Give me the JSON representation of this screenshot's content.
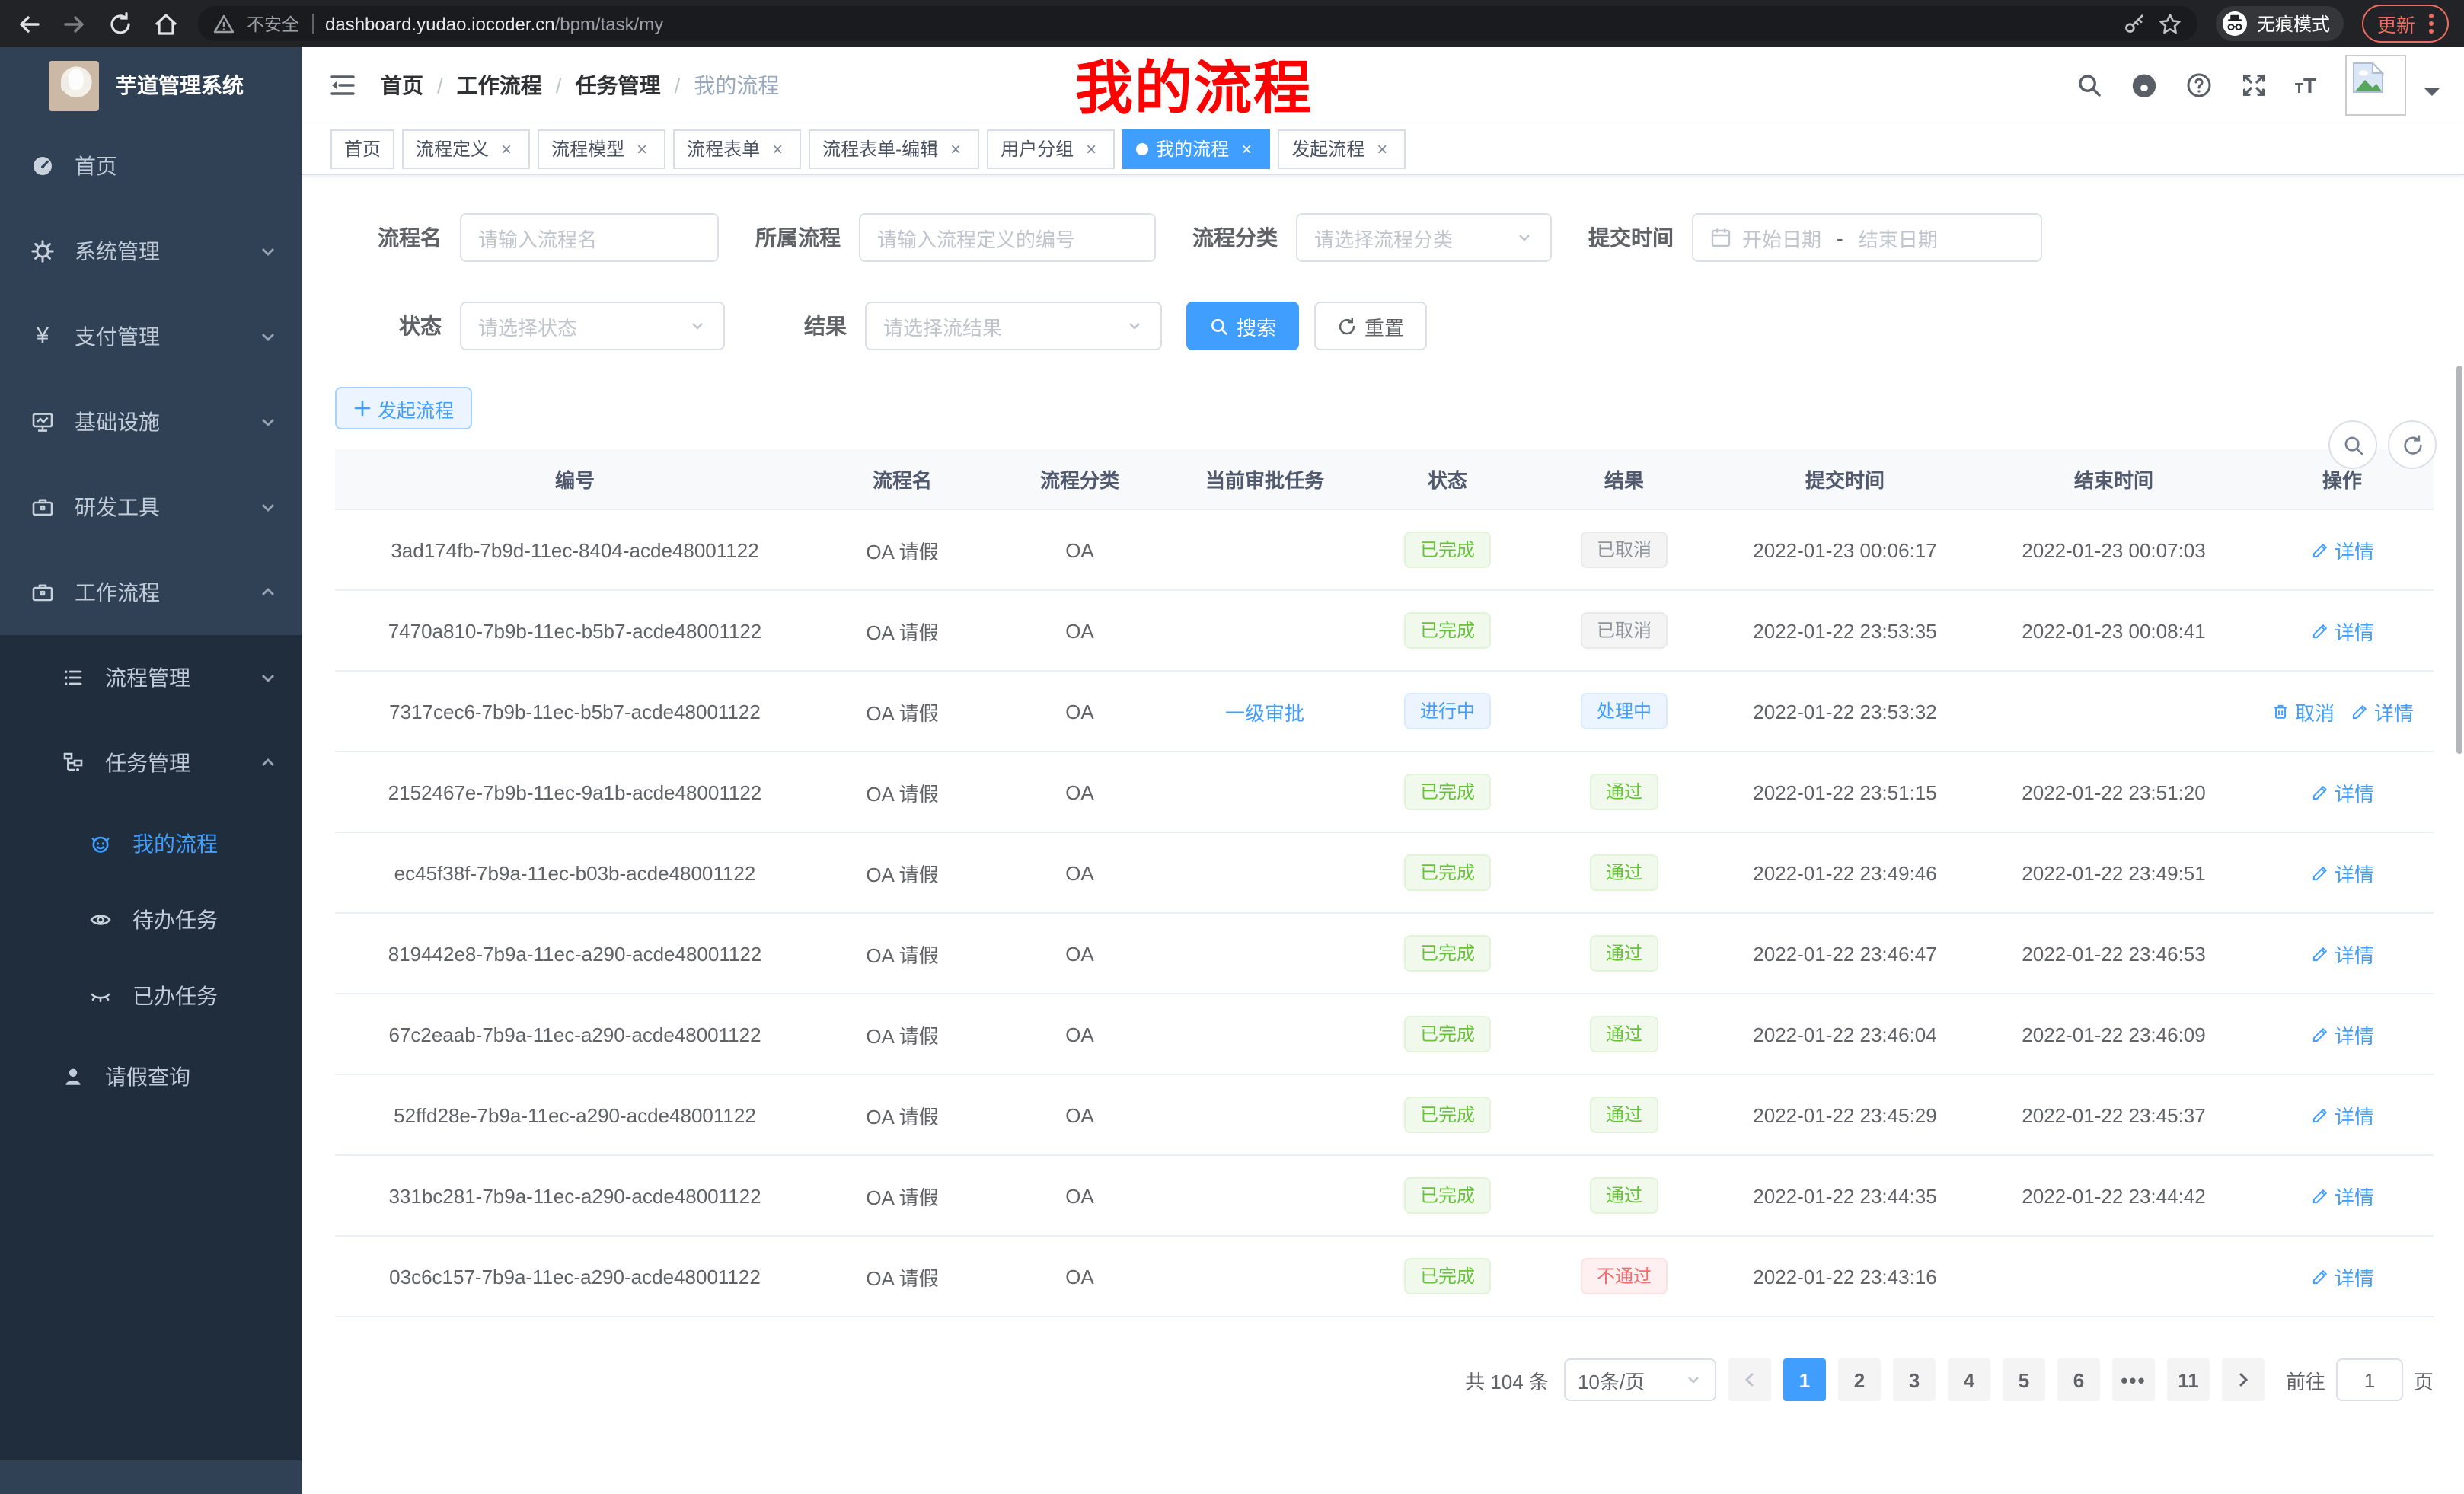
{
  "browser": {
    "security_label": "不安全",
    "url_host": "dashboard.yudao.iocoder.cn",
    "url_path": "/bpm/task/my",
    "incognito_label": "无痕模式",
    "update_label": "更新"
  },
  "sidebar": {
    "app_title": "芋道管理系统",
    "items": [
      {
        "label": "首页"
      },
      {
        "label": "系统管理"
      },
      {
        "label": "支付管理"
      },
      {
        "label": "基础设施"
      },
      {
        "label": "研发工具"
      },
      {
        "label": "工作流程"
      },
      {
        "label": "流程管理"
      },
      {
        "label": "任务管理"
      },
      {
        "label": "我的流程",
        "active": true
      },
      {
        "label": "待办任务"
      },
      {
        "label": "已办任务"
      },
      {
        "label": "请假查询"
      }
    ]
  },
  "breadcrumb": {
    "separator": "/",
    "items": [
      "首页",
      "工作流程",
      "任务管理",
      "我的流程"
    ]
  },
  "annotation": {
    "text": "我的流程"
  },
  "tabs": [
    {
      "label": "首页",
      "closable": false,
      "active": false
    },
    {
      "label": "流程定义",
      "closable": true,
      "active": false
    },
    {
      "label": "流程模型",
      "closable": true,
      "active": false
    },
    {
      "label": "流程表单",
      "closable": true,
      "active": false
    },
    {
      "label": "流程表单-编辑",
      "closable": true,
      "active": false
    },
    {
      "label": "用户分组",
      "closable": true,
      "active": false
    },
    {
      "label": "我的流程",
      "closable": true,
      "active": true
    },
    {
      "label": "发起流程",
      "closable": true,
      "active": false
    }
  ],
  "filters": {
    "name_label": "流程名",
    "name_placeholder": "请输入流程名",
    "owner_label": "所属流程",
    "owner_placeholder": "请输入流程定义的编号",
    "category_label": "流程分类",
    "category_placeholder": "请选择流程分类",
    "submit_label": "提交时间",
    "date_start_placeholder": "开始日期",
    "date_separator": "-",
    "date_end_placeholder": "结束日期",
    "status_label": "状态",
    "status_placeholder": "请选择状态",
    "result_label": "结果",
    "result_placeholder": "请选择流结果",
    "search_label": "搜索",
    "reset_label": "重置"
  },
  "toolbar": {
    "create_label": "发起流程"
  },
  "table": {
    "headers": [
      "编号",
      "流程名",
      "流程分类",
      "当前审批任务",
      "状态",
      "结果",
      "提交时间",
      "结束时间",
      "操作"
    ],
    "rows": [
      {
        "id": "3ad174fb-7b9d-11ec-8404-acde48001122",
        "name": "OA 请假",
        "category": "OA",
        "task": "",
        "status": {
          "text": "已完成",
          "type": "success"
        },
        "result": {
          "text": "已取消",
          "type": "info"
        },
        "submit_time": "2022-01-23 00:06:17",
        "end_time": "2022-01-23 00:07:03",
        "actions": [
          {
            "label": "详情",
            "icon": "edit"
          }
        ]
      },
      {
        "id": "7470a810-7b9b-11ec-b5b7-acde48001122",
        "name": "OA 请假",
        "category": "OA",
        "task": "",
        "status": {
          "text": "已完成",
          "type": "success"
        },
        "result": {
          "text": "已取消",
          "type": "info"
        },
        "submit_time": "2022-01-22 23:53:35",
        "end_time": "2022-01-23 00:08:41",
        "actions": [
          {
            "label": "详情",
            "icon": "edit"
          }
        ]
      },
      {
        "id": "7317cec6-7b9b-11ec-b5b7-acde48001122",
        "name": "OA 请假",
        "category": "OA",
        "task": "一级审批",
        "status": {
          "text": "进行中",
          "type": "primary"
        },
        "result": {
          "text": "处理中",
          "type": "primary"
        },
        "submit_time": "2022-01-22 23:53:32",
        "end_time": "",
        "actions": [
          {
            "label": "取消",
            "icon": "delete"
          },
          {
            "label": "详情",
            "icon": "edit"
          }
        ]
      },
      {
        "id": "2152467e-7b9b-11ec-9a1b-acde48001122",
        "name": "OA 请假",
        "category": "OA",
        "task": "",
        "status": {
          "text": "已完成",
          "type": "success"
        },
        "result": {
          "text": "通过",
          "type": "success"
        },
        "submit_time": "2022-01-22 23:51:15",
        "end_time": "2022-01-22 23:51:20",
        "actions": [
          {
            "label": "详情",
            "icon": "edit"
          }
        ]
      },
      {
        "id": "ec45f38f-7b9a-11ec-b03b-acde48001122",
        "name": "OA 请假",
        "category": "OA",
        "task": "",
        "status": {
          "text": "已完成",
          "type": "success"
        },
        "result": {
          "text": "通过",
          "type": "success"
        },
        "submit_time": "2022-01-22 23:49:46",
        "end_time": "2022-01-22 23:49:51",
        "actions": [
          {
            "label": "详情",
            "icon": "edit"
          }
        ]
      },
      {
        "id": "819442e8-7b9a-11ec-a290-acde48001122",
        "name": "OA 请假",
        "category": "OA",
        "task": "",
        "status": {
          "text": "已完成",
          "type": "success"
        },
        "result": {
          "text": "通过",
          "type": "success"
        },
        "submit_time": "2022-01-22 23:46:47",
        "end_time": "2022-01-22 23:46:53",
        "actions": [
          {
            "label": "详情",
            "icon": "edit"
          }
        ]
      },
      {
        "id": "67c2eaab-7b9a-11ec-a290-acde48001122",
        "name": "OA 请假",
        "category": "OA",
        "task": "",
        "status": {
          "text": "已完成",
          "type": "success"
        },
        "result": {
          "text": "通过",
          "type": "success"
        },
        "submit_time": "2022-01-22 23:46:04",
        "end_time": "2022-01-22 23:46:09",
        "actions": [
          {
            "label": "详情",
            "icon": "edit"
          }
        ]
      },
      {
        "id": "52ffd28e-7b9a-11ec-a290-acde48001122",
        "name": "OA 请假",
        "category": "OA",
        "task": "",
        "status": {
          "text": "已完成",
          "type": "success"
        },
        "result": {
          "text": "通过",
          "type": "success"
        },
        "submit_time": "2022-01-22 23:45:29",
        "end_time": "2022-01-22 23:45:37",
        "actions": [
          {
            "label": "详情",
            "icon": "edit"
          }
        ]
      },
      {
        "id": "331bc281-7b9a-11ec-a290-acde48001122",
        "name": "OA 请假",
        "category": "OA",
        "task": "",
        "status": {
          "text": "已完成",
          "type": "success"
        },
        "result": {
          "text": "通过",
          "type": "success"
        },
        "submit_time": "2022-01-22 23:44:35",
        "end_time": "2022-01-22 23:44:42",
        "actions": [
          {
            "label": "详情",
            "icon": "edit"
          }
        ]
      },
      {
        "id": "03c6c157-7b9a-11ec-a290-acde48001122",
        "name": "OA 请假",
        "category": "OA",
        "task": "",
        "status": {
          "text": "已完成",
          "type": "success"
        },
        "result": {
          "text": "不通过",
          "type": "danger"
        },
        "submit_time": "2022-01-22 23:43:16",
        "end_time": "",
        "actions": [
          {
            "label": "详情",
            "icon": "edit"
          }
        ]
      }
    ]
  },
  "pagination": {
    "total_label": "共 104 条",
    "page_size_label": "10条/页",
    "pages": [
      "1",
      "2",
      "3",
      "4",
      "5",
      "6",
      "•••",
      "11"
    ],
    "active_page": "1",
    "jumper_prefix": "前往",
    "jumper_value": "1",
    "jumper_suffix": "页"
  },
  "colors": {
    "accent": "#409eff",
    "success": "#67c23a",
    "danger": "#f56c6c",
    "info": "#909399",
    "sidebar_bg": "#304156",
    "sidebar_submenu_bg": "#1f2d3d",
    "annotation_red": "#fe0000",
    "active_tab_bg": "#409eff"
  }
}
